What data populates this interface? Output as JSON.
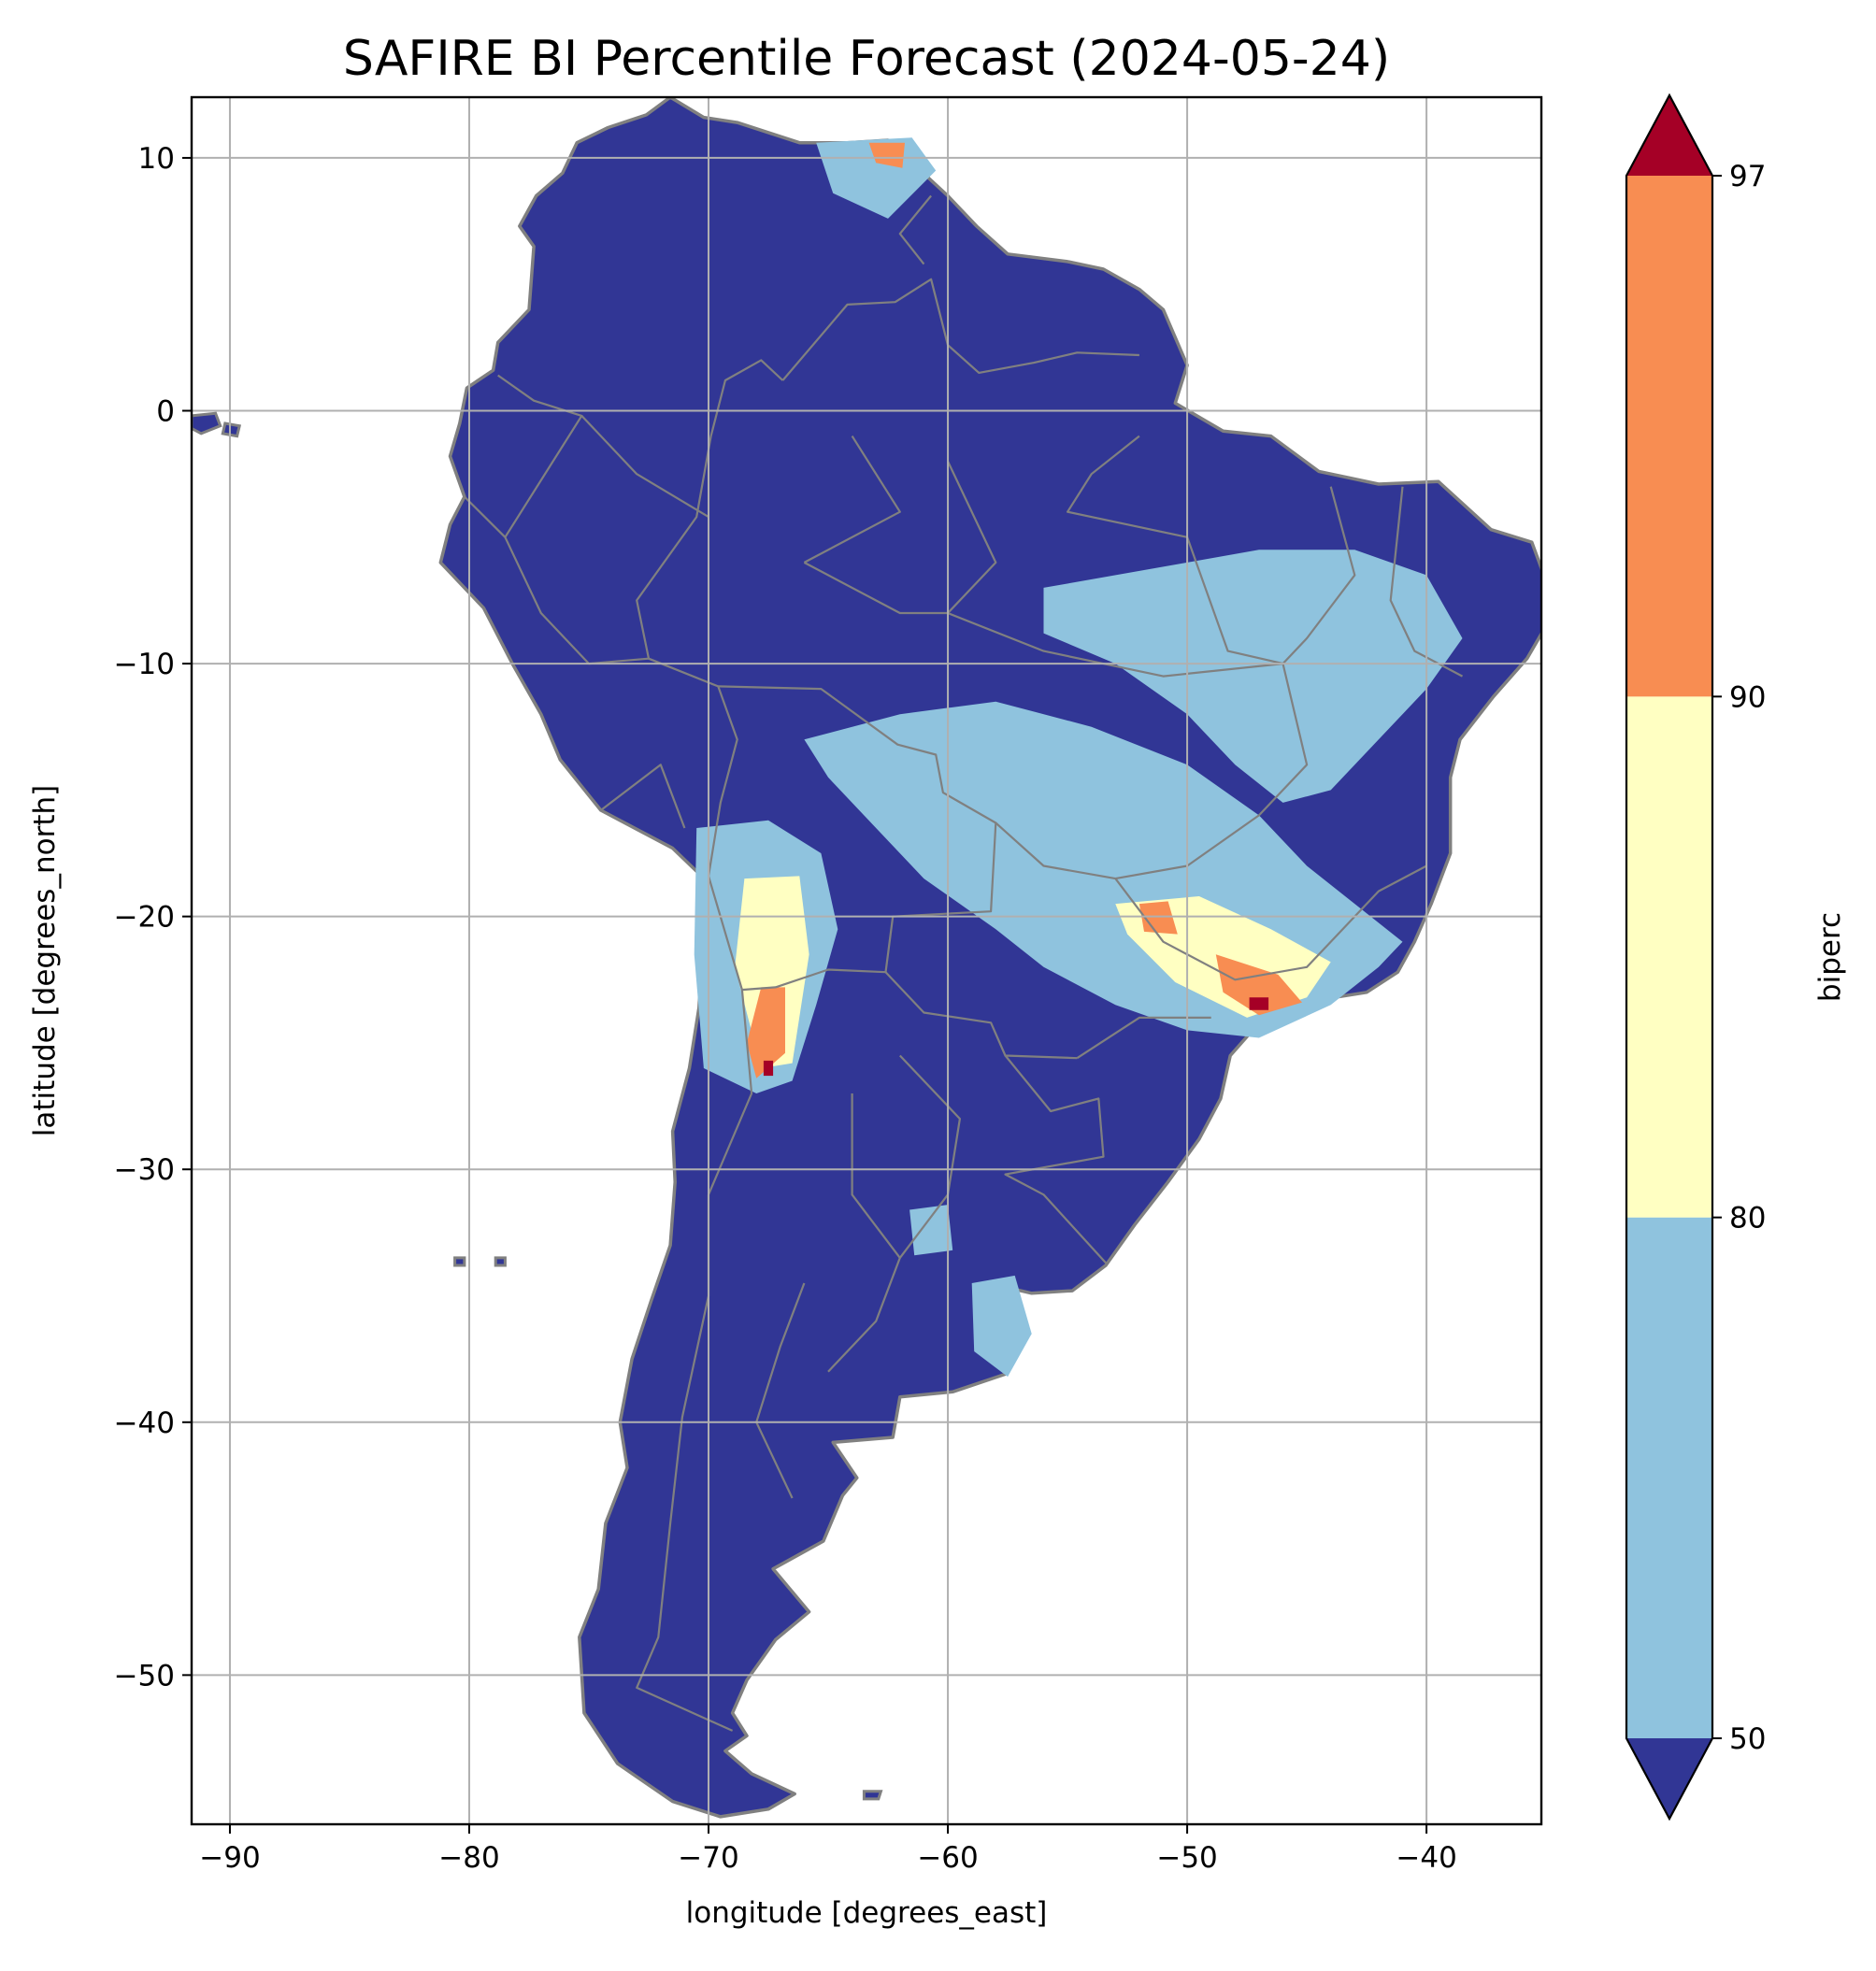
{
  "chart_data": {
    "type": "heatmap",
    "title": "SAFIRE BI Percentile Forecast (2024-05-24)",
    "xlabel": "longitude [degrees_east]",
    "ylabel": "latitude [degrees_north]",
    "xlim": [
      -91.6,
      -35.2
    ],
    "ylim": [
      -55.9,
      12.4
    ],
    "x_ticks": [
      -90,
      -80,
      -70,
      -60,
      -50,
      -40
    ],
    "y_ticks": [
      10,
      0,
      -10,
      -20,
      -30,
      -40,
      -50
    ],
    "x_tick_labels": [
      "−90",
      "−80",
      "−70",
      "−60",
      "−50",
      "−40"
    ],
    "y_tick_labels": [
      "10",
      "0",
      "−10",
      "−20",
      "−30",
      "−40",
      "−50"
    ],
    "grid": true,
    "colorbar": {
      "label": "biperc",
      "extend": "both",
      "boundaries": [
        50,
        80,
        90,
        97
      ],
      "tick_labels": [
        "50",
        "80",
        "90",
        "97"
      ],
      "colors": {
        "below_50": "#313695",
        "50_80": "#8fc3de",
        "80_90": "#ffffc2",
        "90_97": "#f88d52",
        "above_97": "#a50026"
      }
    },
    "colors": {
      "land_default": "#313695",
      "borders": "#808080",
      "grid": "#b0b0b0"
    },
    "regions": [
      {
        "category": "50_80",
        "name": "",
        "polygon": [
          [
            -65.5,
            10.6
          ],
          [
            -61.5,
            10.8
          ],
          [
            -60.5,
            9.5
          ],
          [
            -62.5,
            7.6
          ],
          [
            -64.8,
            8.6
          ]
        ]
      },
      {
        "category": "90_97",
        "name": "",
        "polygon": [
          [
            -63.3,
            10.6
          ],
          [
            -61.8,
            10.6
          ],
          [
            -61.9,
            9.6
          ],
          [
            -63.0,
            9.8
          ]
        ]
      },
      {
        "category": "50_80",
        "name": "",
        "polygon": [
          [
            -56,
            -7
          ],
          [
            -50,
            -6
          ],
          [
            -47,
            -5.5
          ],
          [
            -43,
            -5.5
          ],
          [
            -40,
            -6.5
          ],
          [
            -38.5,
            -9
          ],
          [
            -40,
            -11
          ],
          [
            -42,
            -13
          ],
          [
            -44,
            -15
          ],
          [
            -46,
            -15.5
          ],
          [
            -48,
            -14
          ],
          [
            -50,
            -12
          ],
          [
            -53,
            -10
          ],
          [
            -56,
            -8.8
          ]
        ]
      },
      {
        "category": "50_80",
        "name": "",
        "polygon": [
          [
            -66,
            -13
          ],
          [
            -62,
            -12
          ],
          [
            -58,
            -11.5
          ],
          [
            -54,
            -12.5
          ],
          [
            -50,
            -14
          ],
          [
            -47,
            -16
          ],
          [
            -45,
            -18
          ],
          [
            -43,
            -19.5
          ],
          [
            -41,
            -21
          ],
          [
            -42,
            -22
          ],
          [
            -44,
            -23.5
          ],
          [
            -47,
            -24.8
          ],
          [
            -50,
            -24.5
          ],
          [
            -53,
            -23.5
          ],
          [
            -56,
            -22
          ],
          [
            -58,
            -20.5
          ],
          [
            -61,
            -18.5
          ],
          [
            -63,
            -16.5
          ],
          [
            -65,
            -14.5
          ]
        ]
      },
      {
        "category": "80_90",
        "name": "",
        "polygon": [
          [
            -53,
            -19.5
          ],
          [
            -49.5,
            -19.2
          ],
          [
            -46.5,
            -20.5
          ],
          [
            -44,
            -21.8
          ],
          [
            -45,
            -23.2
          ],
          [
            -47.5,
            -24
          ],
          [
            -50.5,
            -22.6
          ],
          [
            -52.5,
            -20.7
          ]
        ]
      },
      {
        "category": "90_97",
        "name": "",
        "polygon": [
          [
            -48.8,
            -21.5
          ],
          [
            -46.2,
            -22.3
          ],
          [
            -45.2,
            -23.4
          ],
          [
            -47,
            -23.9
          ],
          [
            -48.5,
            -23
          ]
        ]
      },
      {
        "category": "90_97",
        "name": "",
        "polygon": [
          [
            -52,
            -19.5
          ],
          [
            -50.8,
            -19.4
          ],
          [
            -50.4,
            -20.7
          ],
          [
            -51.8,
            -20.6
          ]
        ]
      },
      {
        "category": "above_97",
        "name": "",
        "polygon": [
          [
            -47.4,
            -23.2
          ],
          [
            -46.6,
            -23.2
          ],
          [
            -46.6,
            -23.7
          ],
          [
            -47.4,
            -23.7
          ]
        ]
      },
      {
        "category": "50_80",
        "name": "",
        "polygon": [
          [
            -70.5,
            -16.5
          ],
          [
            -67.5,
            -16.2
          ],
          [
            -65.3,
            -17.5
          ],
          [
            -64.6,
            -20.5
          ],
          [
            -65.5,
            -23.5
          ],
          [
            -66.5,
            -26.5
          ],
          [
            -68,
            -27
          ],
          [
            -70.2,
            -26
          ],
          [
            -70.6,
            -21.5
          ]
        ]
      },
      {
        "category": "80_90",
        "name": "",
        "polygon": [
          [
            -68.5,
            -18.5
          ],
          [
            -66.2,
            -18.4
          ],
          [
            -65.8,
            -21.5
          ],
          [
            -66.5,
            -25.8
          ],
          [
            -67.8,
            -26
          ],
          [
            -68.9,
            -22
          ]
        ]
      },
      {
        "category": "90_97",
        "name": "",
        "polygon": [
          [
            -67.8,
            -22.8
          ],
          [
            -66.8,
            -22.8
          ],
          [
            -66.8,
            -25.4
          ],
          [
            -68,
            -26.4
          ],
          [
            -68.4,
            -25
          ]
        ]
      },
      {
        "category": "above_97",
        "name": "",
        "polygon": [
          [
            -67.7,
            -25.7
          ],
          [
            -67.3,
            -25.7
          ],
          [
            -67.3,
            -26.3
          ],
          [
            -67.7,
            -26.3
          ]
        ]
      },
      {
        "category": "50_80",
        "name": "",
        "polygon": [
          [
            -59,
            -34.5
          ],
          [
            -57.2,
            -34.2
          ],
          [
            -56.5,
            -36.5
          ],
          [
            -57.5,
            -38.2
          ],
          [
            -58.9,
            -37.2
          ]
        ]
      },
      {
        "category": "50_80",
        "name": "",
        "polygon": [
          [
            -61.6,
            -31.6
          ],
          [
            -60,
            -31.4
          ],
          [
            -59.8,
            -33.2
          ],
          [
            -61.4,
            -33.4
          ]
        ]
      }
    ]
  }
}
